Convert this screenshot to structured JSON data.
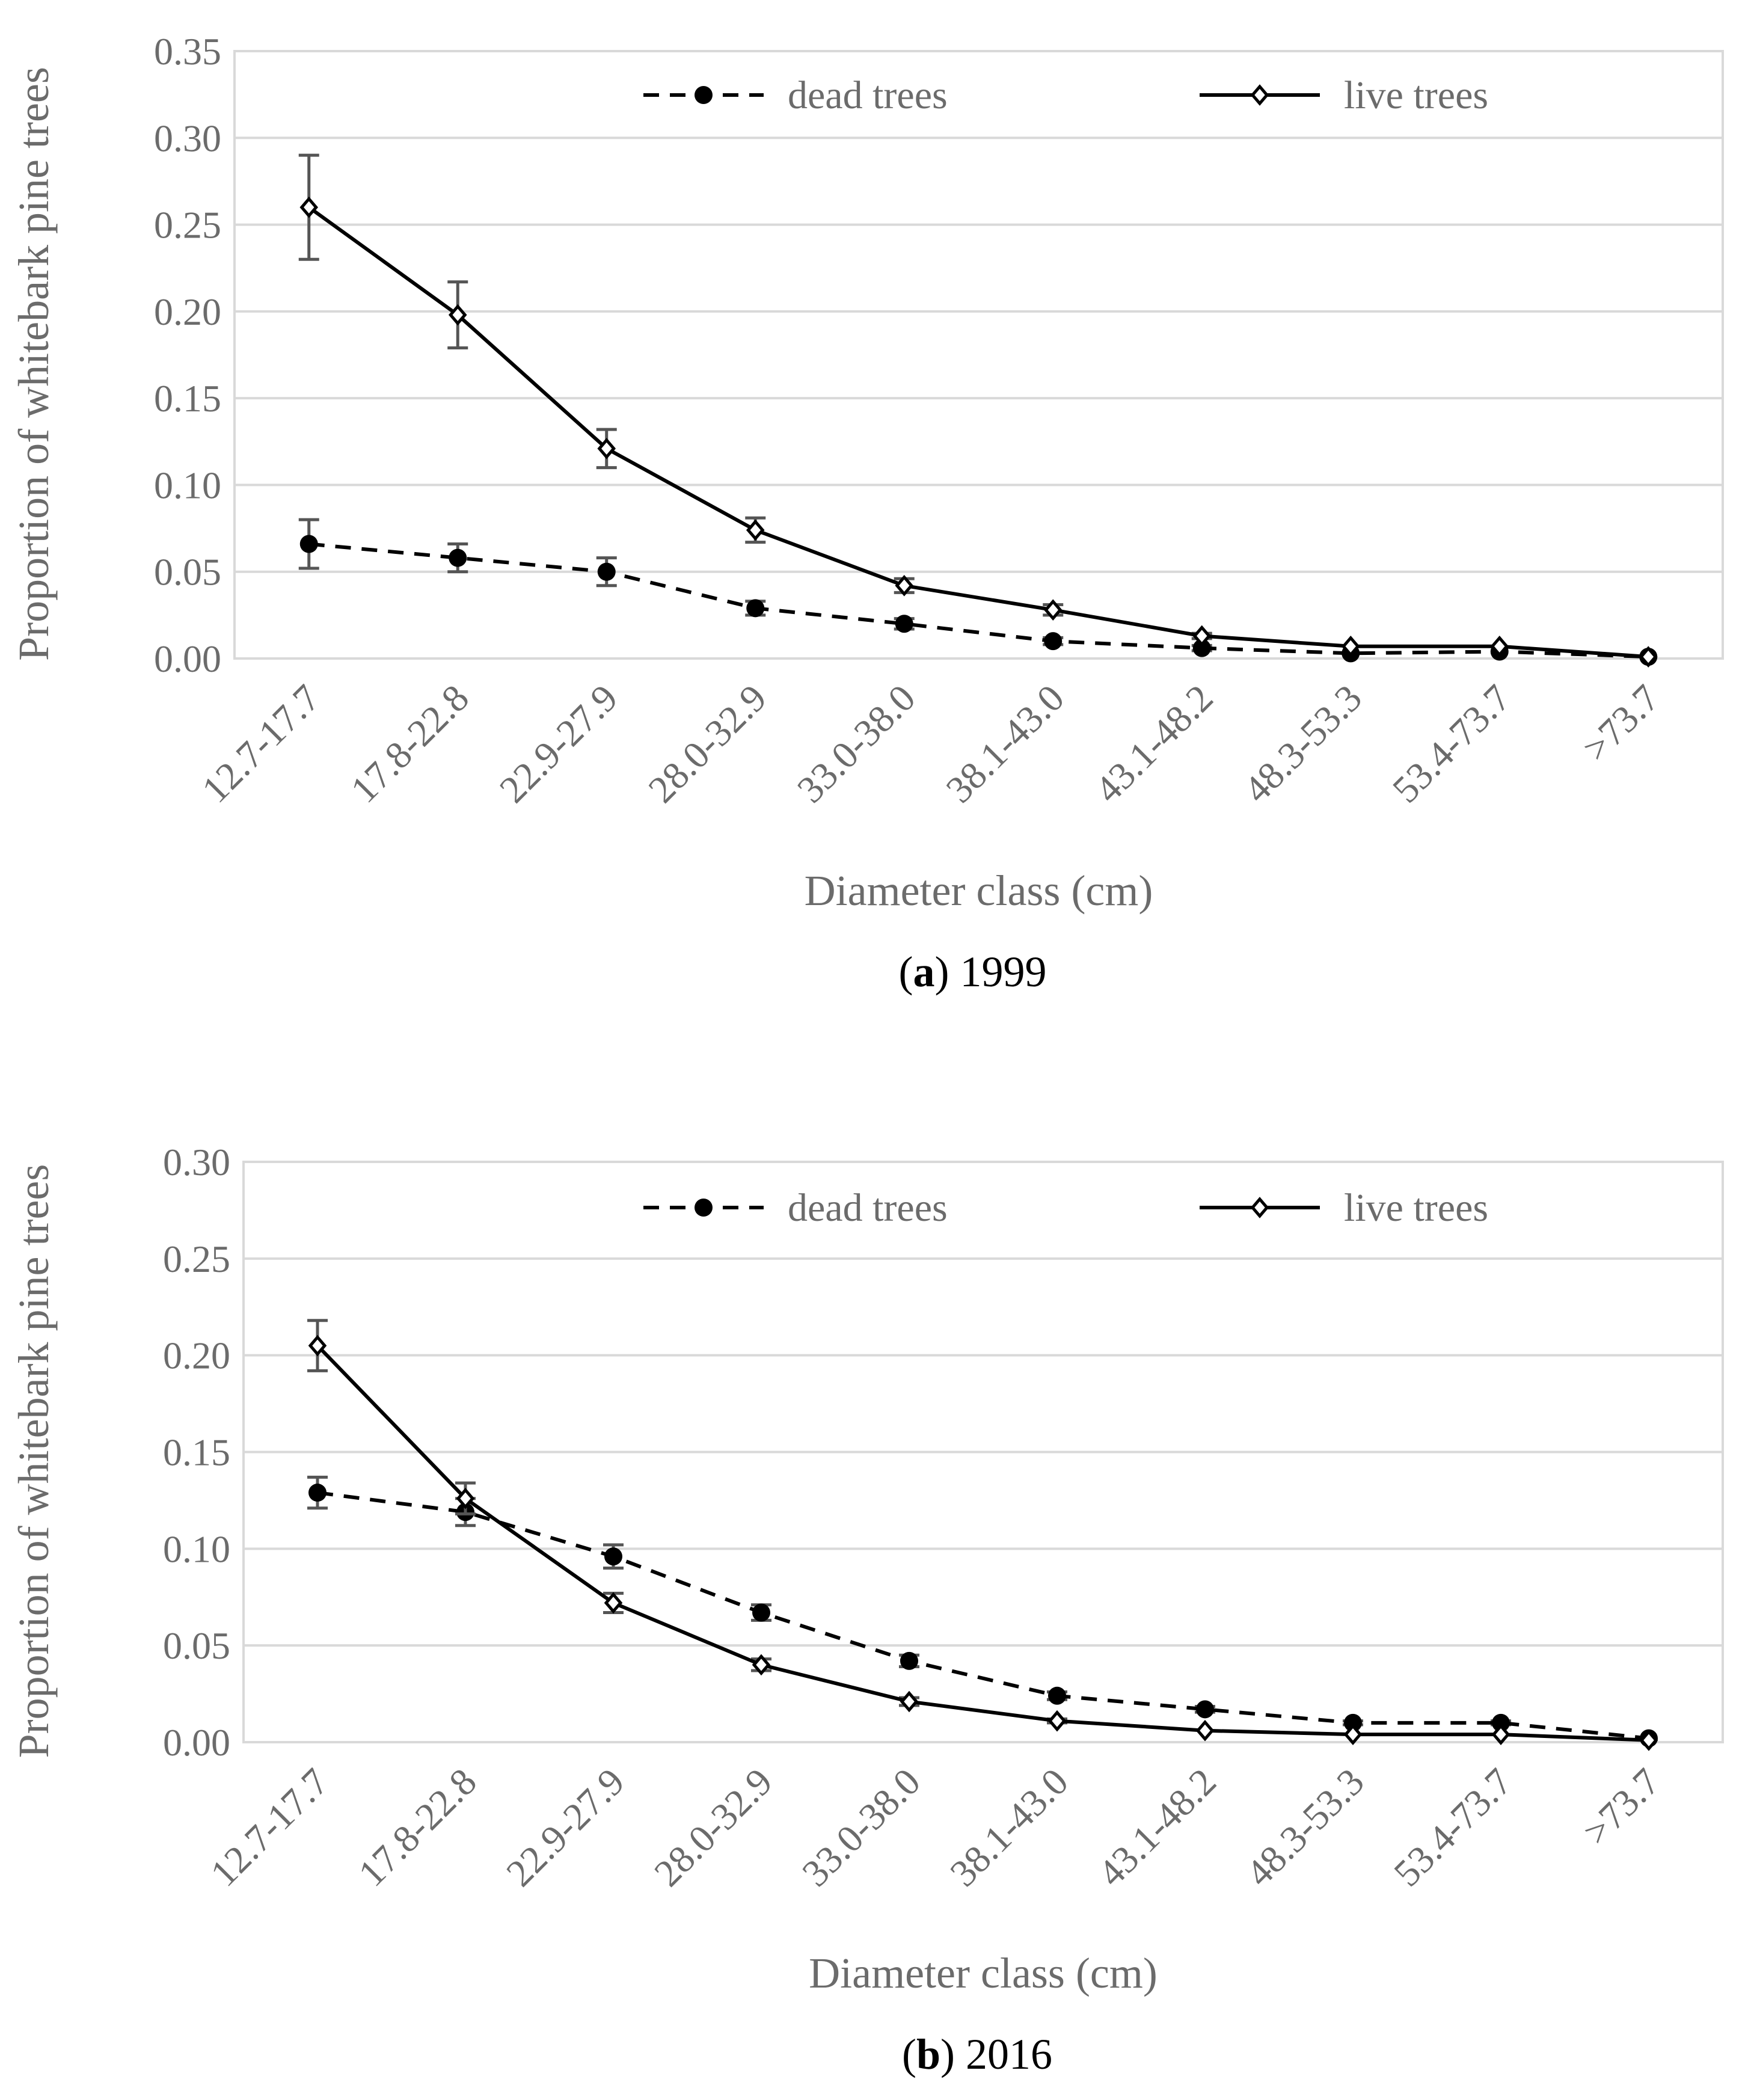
{
  "chart_data": [
    {
      "type": "line",
      "caption_letter": "a",
      "caption_year": "1999",
      "xlabel": "Diameter class (cm)",
      "ylabel": "Proportion of whitebark pine trees",
      "ylim": [
        0,
        0.35
      ],
      "yticks": [
        "0.00",
        "0.05",
        "0.10",
        "0.15",
        "0.20",
        "0.25",
        "0.30",
        "0.35"
      ],
      "categories": [
        "12.7-17.7",
        "17.8-22.8",
        "22.9-27.9",
        "28.0-32.9",
        "33.0-38.0",
        "38.1-43.0",
        "43.1-48.2",
        "48.3-53.3",
        "53.4-73.7",
        ">73.7"
      ],
      "grid": true,
      "legend": "top",
      "series": [
        {
          "name": "dead trees",
          "style": "dashed",
          "marker": "filled-circle",
          "values": [
            0.066,
            0.058,
            0.05,
            0.029,
            0.02,
            0.01,
            0.006,
            0.003,
            0.004,
            0.001
          ],
          "errors": [
            0.014,
            0.008,
            0.008,
            0.004,
            0.003,
            0.002,
            0.0015,
            0.001,
            0.001,
            0.0005
          ]
        },
        {
          "name": "live trees",
          "style": "solid",
          "marker": "open-diamond",
          "values": [
            0.26,
            0.198,
            0.121,
            0.074,
            0.042,
            0.028,
            0.013,
            0.007,
            0.007,
            0.001
          ],
          "errors": [
            0.03,
            0.019,
            0.011,
            0.007,
            0.004,
            0.003,
            0.0015,
            0.001,
            0.001,
            0.0005
          ]
        }
      ]
    },
    {
      "type": "line",
      "caption_letter": "b",
      "caption_year": "2016",
      "xlabel": "Diameter class (cm)",
      "ylabel": "Proportion of whitebark pine trees",
      "ylim": [
        0,
        0.3
      ],
      "yticks": [
        "0.00",
        "0.05",
        "0.10",
        "0.15",
        "0.20",
        "0.25",
        "0.30"
      ],
      "categories": [
        "12.7-17.7",
        "17.8-22.8",
        "22.9-27.9",
        "28.0-32.9",
        "33.0-38.0",
        "38.1-43.0",
        "43.1-48.2",
        "48.3-53.3",
        "53.4-73.7",
        ">73.7"
      ],
      "grid": true,
      "legend": "top",
      "series": [
        {
          "name": "dead trees",
          "style": "dashed",
          "marker": "filled-circle",
          "values": [
            0.129,
            0.119,
            0.096,
            0.067,
            0.042,
            0.024,
            0.017,
            0.01,
            0.01,
            0.002
          ],
          "errors": [
            0.008,
            0.007,
            0.006,
            0.004,
            0.003,
            0.002,
            0.0015,
            0.001,
            0.001,
            0.0005
          ]
        },
        {
          "name": "live trees",
          "style": "solid",
          "marker": "open-diamond",
          "values": [
            0.205,
            0.126,
            0.072,
            0.04,
            0.021,
            0.011,
            0.006,
            0.004,
            0.004,
            0.001
          ],
          "errors": [
            0.013,
            0.008,
            0.005,
            0.003,
            0.002,
            0.001,
            0.0008,
            0.0005,
            0.0005,
            0.0003
          ]
        }
      ]
    }
  ]
}
